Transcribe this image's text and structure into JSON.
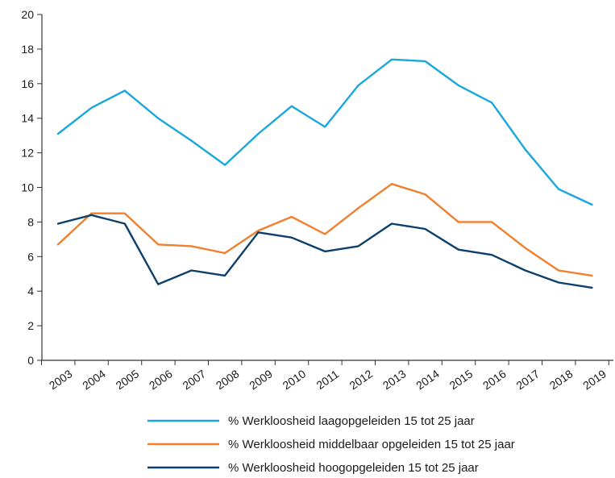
{
  "chart_data": {
    "type": "line",
    "x": [
      "2003",
      "2004",
      "2005",
      "2006",
      "2007",
      "2008",
      "2009",
      "2010",
      "2011",
      "2012",
      "2013",
      "2014",
      "2015",
      "2016",
      "2017",
      "2018",
      "2019"
    ],
    "ylim": [
      0,
      20
    ],
    "yticks": [
      0,
      2,
      4,
      6,
      8,
      10,
      12,
      14,
      16,
      18,
      20
    ],
    "grid": false,
    "legend_position": "bottom",
    "series": [
      {
        "name": "% Werkloosheid laagopgeleiden 15 tot 25 jaar",
        "color": "#1aa7dc",
        "values": [
          13.1,
          14.6,
          15.6,
          14.0,
          12.7,
          11.3,
          13.1,
          14.7,
          13.5,
          15.9,
          17.4,
          17.3,
          15.9,
          14.9,
          12.2,
          9.9,
          9.0
        ]
      },
      {
        "name": "% Werkloosheid middelbaar opgeleiden 15 tot 25 jaar",
        "color": "#f07f2e",
        "values": [
          6.7,
          8.5,
          8.5,
          6.7,
          6.6,
          6.2,
          7.5,
          8.3,
          7.3,
          8.8,
          10.2,
          9.6,
          8.0,
          8.0,
          6.5,
          5.2,
          4.9
        ]
      },
      {
        "name": "% Werkloosheid hoogopgeleiden 15 tot 25 jaar",
        "color": "#0d3f6b",
        "values": [
          7.9,
          8.4,
          7.9,
          4.4,
          5.2,
          4.9,
          7.4,
          7.1,
          6.3,
          6.6,
          7.9,
          7.6,
          6.4,
          6.1,
          5.2,
          4.5,
          4.2
        ]
      }
    ]
  }
}
